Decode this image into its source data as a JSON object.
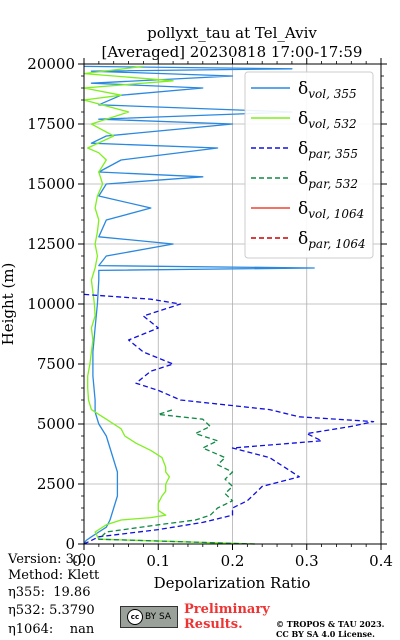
{
  "chart_data": {
    "type": "line",
    "orientation": "vertical-profile",
    "title": "pollyxt_tau at Tel_Aviv",
    "subtitle": "[Averaged] 20230818 17:00-17:59",
    "xlabel": "Depolarization Ratio",
    "ylabel": "Height (m)",
    "xlim": [
      0,
      0.4
    ],
    "ylim": [
      0,
      20000
    ],
    "x_ticks": [
      0.0,
      0.1,
      0.2,
      0.3,
      0.4
    ],
    "x_tick_labels": [
      "0.0",
      "0.1",
      "0.2",
      "0.3",
      "0.4"
    ],
    "y_ticks": [
      0,
      2500,
      5000,
      7500,
      10000,
      12500,
      15000,
      17500,
      20000
    ],
    "y_tick_labels": [
      "0",
      "2500",
      "5000",
      "7500",
      "10000",
      "12500",
      "15000",
      "17500",
      "20000"
    ],
    "grid": true,
    "legend_position": "top-right",
    "series": [
      {
        "label_main": "δ",
        "label_sub": "vol, 355",
        "color": "#2a88e0",
        "dash": "solid",
        "points": [
          [
            0.0,
            0
          ],
          [
            0.003,
            150
          ],
          [
            0.01,
            300
          ],
          [
            0.02,
            500
          ],
          [
            0.03,
            700
          ],
          [
            0.035,
            1000
          ],
          [
            0.04,
            1500
          ],
          [
            0.045,
            2000
          ],
          [
            0.045,
            2500
          ],
          [
            0.045,
            3000
          ],
          [
            0.04,
            3500
          ],
          [
            0.035,
            4000
          ],
          [
            0.03,
            4500
          ],
          [
            0.02,
            5000
          ],
          [
            0.015,
            5500
          ],
          [
            0.015,
            6000
          ],
          [
            0.012,
            7000
          ],
          [
            0.012,
            8000
          ],
          [
            0.015,
            9000
          ],
          [
            0.018,
            10000
          ],
          [
            0.02,
            11000
          ],
          [
            0.02,
            11400
          ],
          [
            0.31,
            11500
          ],
          [
            0.02,
            11600
          ],
          [
            0.03,
            12000
          ],
          [
            0.12,
            12500
          ],
          [
            0.02,
            12800
          ],
          [
            0.03,
            13500
          ],
          [
            0.09,
            14000
          ],
          [
            0.02,
            14500
          ],
          [
            0.03,
            15000
          ],
          [
            0.16,
            15300
          ],
          [
            0.02,
            15500
          ],
          [
            0.05,
            16000
          ],
          [
            0.18,
            16500
          ],
          [
            0.01,
            16700
          ],
          [
            0.03,
            17000
          ],
          [
            0.2,
            17500
          ],
          [
            0.02,
            17700
          ],
          [
            0.28,
            18000
          ],
          [
            0.02,
            18300
          ],
          [
            0.05,
            18700
          ],
          [
            0.16,
            19000
          ],
          [
            0.01,
            19200
          ],
          [
            0.2,
            19500
          ],
          [
            0.01,
            19700
          ],
          [
            0.28,
            19800
          ],
          [
            0.0,
            19900
          ]
        ]
      },
      {
        "label_main": "δ",
        "label_sub": "vol, 532",
        "color": "#7ef01e",
        "dash": "solid",
        "points": [
          [
            0.23,
            0
          ],
          [
            0.02,
            200
          ],
          [
            0.015,
            500
          ],
          [
            0.03,
            800
          ],
          [
            0.05,
            1000
          ],
          [
            0.09,
            1100
          ],
          [
            0.11,
            1200
          ],
          [
            0.1,
            1400
          ],
          [
            0.1,
            1700
          ],
          [
            0.105,
            2000
          ],
          [
            0.11,
            2200
          ],
          [
            0.11,
            2500
          ],
          [
            0.115,
            2800
          ],
          [
            0.11,
            3000
          ],
          [
            0.11,
            3200
          ],
          [
            0.105,
            3600
          ],
          [
            0.09,
            3900
          ],
          [
            0.07,
            4200
          ],
          [
            0.055,
            4500
          ],
          [
            0.05,
            4800
          ],
          [
            0.04,
            5000
          ],
          [
            0.03,
            5200
          ],
          [
            0.02,
            5400
          ],
          [
            0.01,
            5600
          ],
          [
            0.006,
            6000
          ],
          [
            0.005,
            6500
          ],
          [
            0.005,
            7000
          ],
          [
            0.008,
            7500
          ],
          [
            0.01,
            8000
          ],
          [
            0.012,
            8500
          ],
          [
            0.01,
            9000
          ],
          [
            0.015,
            9500
          ],
          [
            0.014,
            10000
          ],
          [
            0.012,
            10500
          ],
          [
            0.01,
            11000
          ],
          [
            0.015,
            11500
          ],
          [
            0.018,
            12000
          ],
          [
            0.015,
            12500
          ],
          [
            0.018,
            13000
          ],
          [
            0.02,
            13500
          ],
          [
            0.015,
            14000
          ],
          [
            0.018,
            14500
          ],
          [
            0.025,
            15000
          ],
          [
            0.02,
            15500
          ],
          [
            0.03,
            16000
          ],
          [
            0.02,
            16300
          ],
          [
            0.005,
            16500
          ],
          [
            0.04,
            17000
          ],
          [
            0.01,
            17500
          ],
          [
            0.06,
            18000
          ],
          [
            0.0,
            18500
          ],
          [
            0.05,
            18700
          ],
          [
            0.0,
            19000
          ],
          [
            0.12,
            19300
          ],
          [
            0.0,
            19600
          ],
          [
            0.08,
            19900
          ]
        ]
      },
      {
        "label_main": "δ",
        "label_sub": "par, 355",
        "color": "#1010e0",
        "dash": "dashed",
        "points": [
          [
            0.0,
            0
          ],
          [
            0.01,
            150
          ],
          [
            0.02,
            300
          ],
          [
            0.1,
            600
          ],
          [
            0.16,
            900
          ],
          [
            0.2,
            1200
          ],
          [
            0.2,
            1500
          ],
          [
            0.22,
            1800
          ],
          [
            0.23,
            2100
          ],
          [
            0.24,
            2400
          ],
          [
            0.29,
            2800
          ],
          [
            0.27,
            3200
          ],
          [
            0.25,
            3600
          ],
          [
            0.2,
            4000
          ],
          [
            0.32,
            4300
          ],
          [
            0.3,
            4600
          ],
          [
            0.36,
            4900
          ],
          [
            0.39,
            5100
          ],
          [
            0.29,
            5300
          ],
          [
            0.25,
            5600
          ],
          [
            0.13,
            6000
          ],
          [
            0.1,
            6400
          ],
          [
            0.07,
            6700
          ],
          [
            0.09,
            7200
          ],
          [
            0.12,
            7500
          ],
          [
            0.08,
            8000
          ],
          [
            0.06,
            8500
          ],
          [
            0.1,
            9000
          ],
          [
            0.08,
            9500
          ],
          [
            0.11,
            9800
          ],
          [
            0.13,
            10000
          ],
          [
            0.09,
            10200
          ],
          [
            0.0,
            10400
          ]
        ]
      },
      {
        "label_main": "δ",
        "label_sub": "par, 532",
        "color": "#118844",
        "dash": "dashed",
        "points": [
          [
            0.23,
            0
          ],
          [
            0.02,
            200
          ],
          [
            0.03,
            500
          ],
          [
            0.1,
            800
          ],
          [
            0.15,
            1000
          ],
          [
            0.17,
            1200
          ],
          [
            0.18,
            1500
          ],
          [
            0.2,
            1800
          ],
          [
            0.19,
            2100
          ],
          [
            0.2,
            2400
          ],
          [
            0.19,
            2700
          ],
          [
            0.2,
            3000
          ],
          [
            0.18,
            3300
          ],
          [
            0.19,
            3600
          ],
          [
            0.16,
            4000
          ],
          [
            0.18,
            4300
          ],
          [
            0.15,
            4600
          ],
          [
            0.17,
            4900
          ],
          [
            0.16,
            5200
          ],
          [
            0.1,
            5400
          ],
          [
            0.12,
            5600
          ]
        ]
      },
      {
        "label_main": "δ",
        "label_sub": "vol, 1064",
        "color": "#ee4433",
        "dash": "solid",
        "points": []
      },
      {
        "label_main": "δ",
        "label_sub": "par, 1064",
        "color": "#cc0000",
        "dash": "dashed",
        "points": []
      }
    ]
  },
  "info": {
    "version": "Version: 3.0",
    "method": "Method: Klett",
    "eta355": "η355:  19.86",
    "eta532": "η532: 5.3790",
    "eta1064": "η1064:    nan"
  },
  "footer": {
    "preliminary_line1": "Preliminary",
    "preliminary_line2": "Results.",
    "copyright_line1": "© TROPOS & TAU 2023.",
    "copyright_line2": "CC BY SA 4.0 License.",
    "cc_badge_text": "BY SA"
  }
}
